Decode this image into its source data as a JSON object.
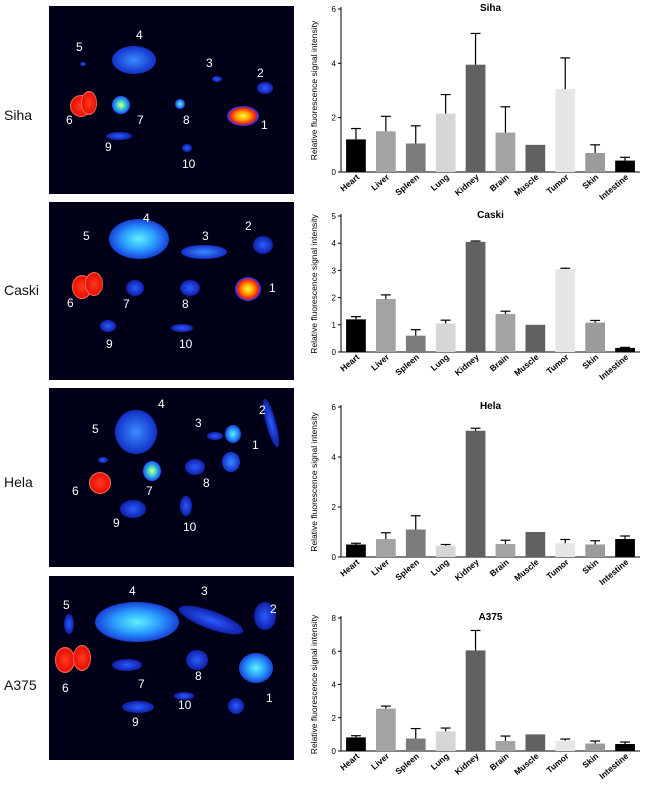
{
  "panels": [
    {
      "label": "Siha",
      "image_numbers": [
        "1",
        "2",
        "3",
        "4",
        "5",
        "6",
        "7",
        "8",
        "9",
        "10"
      ],
      "chart": {
        "title": "Siha",
        "ylabel": "Relative fluorescence signal intensity",
        "ylim": [
          0,
          6
        ],
        "yticks": [
          "0",
          "2",
          "4",
          "6"
        ],
        "ytick_values": [
          0,
          2,
          4,
          6
        ]
      }
    },
    {
      "label": "Caski",
      "image_numbers": [
        "1",
        "2",
        "3",
        "4",
        "5",
        "6",
        "7",
        "8",
        "9",
        "10"
      ],
      "chart": {
        "title": "Caski",
        "ylabel": "Relative fluorescence signal intensity",
        "ylim": [
          0,
          5
        ],
        "yticks": [
          "0",
          "1",
          "2",
          "3",
          "4",
          "5"
        ],
        "ytick_values": [
          0,
          1,
          2,
          3,
          4,
          5
        ]
      }
    },
    {
      "label": "Hela",
      "image_numbers": [
        "1",
        "2",
        "3",
        "4",
        "5",
        "6",
        "7",
        "8",
        "9",
        "10"
      ],
      "chart": {
        "title": "Hela",
        "ylabel": "Relative fluorescence signal intensity",
        "ylim": [
          0,
          6
        ],
        "yticks": [
          "0",
          "2",
          "4",
          "6"
        ],
        "ytick_values": [
          0,
          2,
          4,
          6
        ]
      }
    },
    {
      "label": "A375",
      "image_numbers": [
        "1",
        "2",
        "3",
        "4",
        "5",
        "6",
        "7",
        "8",
        "9",
        "10"
      ],
      "chart": {
        "title": "A375",
        "ylabel": "Relative fluorescence signal intensity",
        "ylim": [
          0,
          8
        ],
        "yticks": [
          "0",
          "2",
          "4",
          "6",
          "8"
        ],
        "ytick_values": [
          0,
          2,
          4,
          6,
          8
        ]
      }
    }
  ],
  "chart_data": [
    {
      "type": "bar",
      "title": "Siha",
      "ylabel": "Relative fluorescence signal intensity",
      "ylim": [
        0,
        6
      ],
      "categories": [
        "Heart",
        "Liver",
        "Spleen",
        "Lung",
        "Kidney",
        "Brain",
        "Muscle",
        "Tumor",
        "Skin",
        "Intestine"
      ],
      "values": [
        1.2,
        1.5,
        1.05,
        2.15,
        3.95,
        1.45,
        1.0,
        3.05,
        0.7,
        0.42
      ],
      "errors": [
        0.4,
        0.55,
        0.65,
        0.7,
        1.15,
        0.95,
        0.0,
        1.15,
        0.3,
        0.12
      ],
      "colors": [
        "#000000",
        "#a3a3a3",
        "#7b7b7b",
        "#d6d6d6",
        "#616161",
        "#a3a3a3",
        "#616161",
        "#e6e6e6",
        "#9b9b9b",
        "#000000"
      ]
    },
    {
      "type": "bar",
      "title": "Caski",
      "ylabel": "Relative fluorescence signal intensity",
      "ylim": [
        0,
        5
      ],
      "categories": [
        "Heart",
        "Liver",
        "Spleen",
        "Lung",
        "Kidney",
        "Brain",
        "Muscle",
        "Tumor",
        "Skin",
        "Intestine"
      ],
      "values": [
        1.2,
        1.95,
        0.6,
        1.05,
        4.05,
        1.4,
        1.0,
        3.05,
        1.08,
        0.15
      ],
      "errors": [
        0.1,
        0.15,
        0.22,
        0.12,
        0.03,
        0.1,
        0.0,
        0.03,
        0.08,
        0.02
      ],
      "colors": [
        "#000000",
        "#a3a3a3",
        "#7b7b7b",
        "#d6d6d6",
        "#616161",
        "#a3a3a3",
        "#616161",
        "#e6e6e6",
        "#9b9b9b",
        "#000000"
      ]
    },
    {
      "type": "bar",
      "title": "Hela",
      "ylabel": "Relative fluorescence signal intensity",
      "ylim": [
        0,
        6
      ],
      "categories": [
        "Heart",
        "Liver",
        "Spleen",
        "Lung",
        "Kidney",
        "Brain",
        "Muscle",
        "Tumor",
        "Skin",
        "Intestine"
      ],
      "values": [
        0.5,
        0.72,
        1.1,
        0.45,
        5.05,
        0.52,
        1.0,
        0.55,
        0.5,
        0.72
      ],
      "errors": [
        0.05,
        0.25,
        0.55,
        0.05,
        0.1,
        0.15,
        0.0,
        0.15,
        0.15,
        0.12
      ],
      "colors": [
        "#000000",
        "#a3a3a3",
        "#7b7b7b",
        "#d6d6d6",
        "#616161",
        "#a3a3a3",
        "#616161",
        "#e6e6e6",
        "#9b9b9b",
        "#000000"
      ]
    },
    {
      "type": "bar",
      "title": "A375",
      "ylabel": "Relative fluorescence signal intensity",
      "ylim": [
        0,
        8
      ],
      "categories": [
        "Heart",
        "Liver",
        "Spleen",
        "Lung",
        "Kidney",
        "Brain",
        "Muscle",
        "Tumor",
        "Skin",
        "Intestine"
      ],
      "values": [
        0.82,
        2.55,
        0.75,
        1.18,
        6.05,
        0.6,
        1.0,
        0.62,
        0.45,
        0.42
      ],
      "errors": [
        0.1,
        0.15,
        0.6,
        0.2,
        1.2,
        0.3,
        0.0,
        0.1,
        0.15,
        0.12
      ],
      "colors": [
        "#000000",
        "#a3a3a3",
        "#7b7b7b",
        "#d6d6d6",
        "#616161",
        "#a3a3a3",
        "#616161",
        "#e6e6e6",
        "#9b9b9b",
        "#000000"
      ]
    }
  ]
}
